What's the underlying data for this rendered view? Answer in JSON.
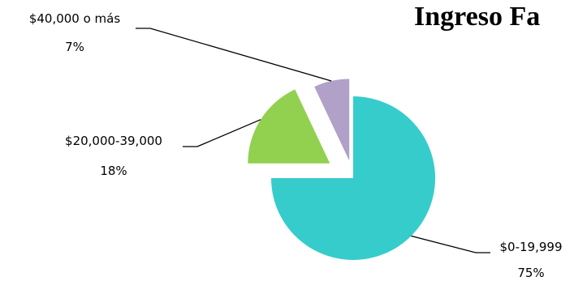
{
  "chart_data": {
    "type": "pie",
    "title": "Ingreso Fa",
    "exploded": true,
    "slices": [
      {
        "label": "$0-19,999",
        "percent_label": "75%",
        "value": 75,
        "color": "#36cccc"
      },
      {
        "label": "$20,000-39,000",
        "percent_label": "18%",
        "value": 18,
        "color": "#92d050"
      },
      {
        "label": "$40,000 o más",
        "percent_label": "7%",
        "value": 7,
        "color": "#b1a0c7"
      }
    ]
  }
}
